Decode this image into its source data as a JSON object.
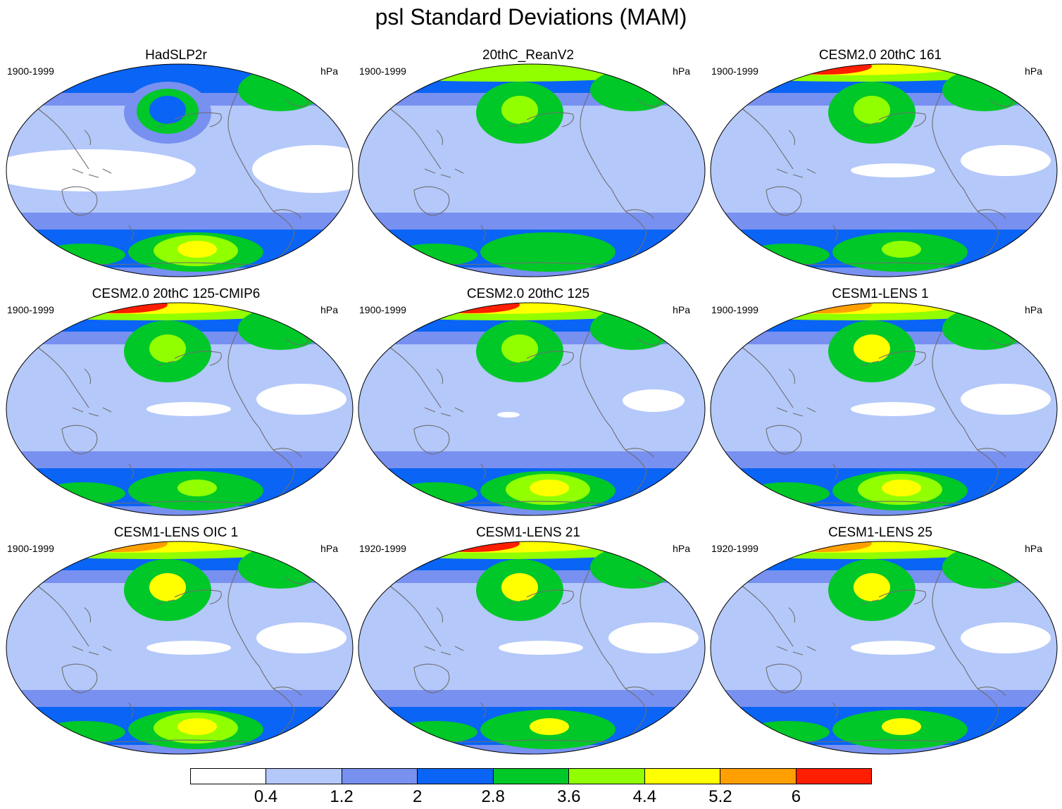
{
  "title": "psl Standard Deviations (MAM)",
  "units": "hPa",
  "colors": {
    "levels": [
      "#ffffff",
      "#b4c8fa",
      "#7890f0",
      "#0a64f5",
      "#00c828",
      "#91ff00",
      "#ffff00",
      "#ffa000",
      "#ff1e00"
    ],
    "coastline": "#6e6e6e",
    "outline": "#000000"
  },
  "colorbar": {
    "tick_labels": [
      "0.4",
      "1.2",
      "2",
      "2.8",
      "3.6",
      "4.4",
      "5.2",
      "6"
    ]
  },
  "panels": [
    {
      "title": "HadSLP2r",
      "period": "1900-1999",
      "units": "hPa",
      "features": {
        "arctic": 3,
        "north_pacific_center": 3,
        "north_pacific_ring": 2,
        "tropical_white": "wide",
        "southern_belt": 3,
        "southern_center": 6,
        "southern_ring": 5
      }
    },
    {
      "title": "20thC_ReanV2",
      "period": "1900-1999",
      "units": "hPa",
      "features": {
        "arctic": 5,
        "north_pacific_center": 5,
        "north_pacific_ring": 4,
        "tropical_white": "none",
        "southern_belt": 3,
        "southern_center": 4,
        "southern_ring": 4
      }
    },
    {
      "title": "CESM2.0 20thC 161",
      "period": "1900-1999",
      "units": "hPa",
      "features": {
        "arctic": 7,
        "arctic_peak": 8,
        "north_pacific_center": 5,
        "north_pacific_ring": 4,
        "tropical_white": "some",
        "southern_belt": 3,
        "southern_center": 5,
        "southern_ring": 4
      }
    },
    {
      "title": "CESM2.0 20thC 125-CMIP6",
      "period": "1900-1999",
      "units": "hPa",
      "features": {
        "arctic": 6,
        "arctic_peak": 8,
        "north_pacific_center": 5,
        "north_pacific_ring": 4,
        "tropical_white": "some",
        "southern_belt": 3,
        "southern_center": 5,
        "southern_ring": 4
      }
    },
    {
      "title": "CESM2.0 20thC 125",
      "period": "1900-1999",
      "units": "hPa",
      "features": {
        "arctic": 6,
        "arctic_peak": 8,
        "north_pacific_center": 5,
        "north_pacific_ring": 4,
        "tropical_white": "little",
        "southern_belt": 3,
        "southern_center": 6,
        "southern_ring": 5
      }
    },
    {
      "title": "CESM1-LENS 1",
      "period": "1900-1999",
      "units": "hPa",
      "features": {
        "arctic": 6,
        "arctic_peak": 7,
        "north_pacific_center": 6,
        "north_pacific_ring": 4,
        "tropical_white": "some",
        "southern_belt": 3,
        "southern_center": 6,
        "southern_ring": 5
      }
    },
    {
      "title": "CESM1-LENS OIC 1",
      "period": "1900-1999",
      "units": "hPa",
      "features": {
        "arctic": 6,
        "arctic_peak": 7,
        "north_pacific_center": 6,
        "north_pacific_ring": 4,
        "tropical_white": "some",
        "southern_belt": 3,
        "southern_center": 6,
        "southern_ring": 5
      }
    },
    {
      "title": "CESM1-LENS 21",
      "period": "1920-1999",
      "units": "hPa",
      "features": {
        "arctic": 6,
        "arctic_peak": 8,
        "north_pacific_center": 6,
        "north_pacific_ring": 4,
        "tropical_white": "some",
        "southern_belt": 3,
        "southern_center": 6,
        "southern_ring": 4
      }
    },
    {
      "title": "CESM1-LENS 25",
      "period": "1920-1999",
      "units": "hPa",
      "features": {
        "arctic": 6,
        "arctic_peak": 7,
        "north_pacific_center": 6,
        "north_pacific_ring": 4,
        "tropical_white": "some",
        "southern_belt": 3,
        "southern_center": 6,
        "southern_ring": 4
      }
    }
  ]
}
